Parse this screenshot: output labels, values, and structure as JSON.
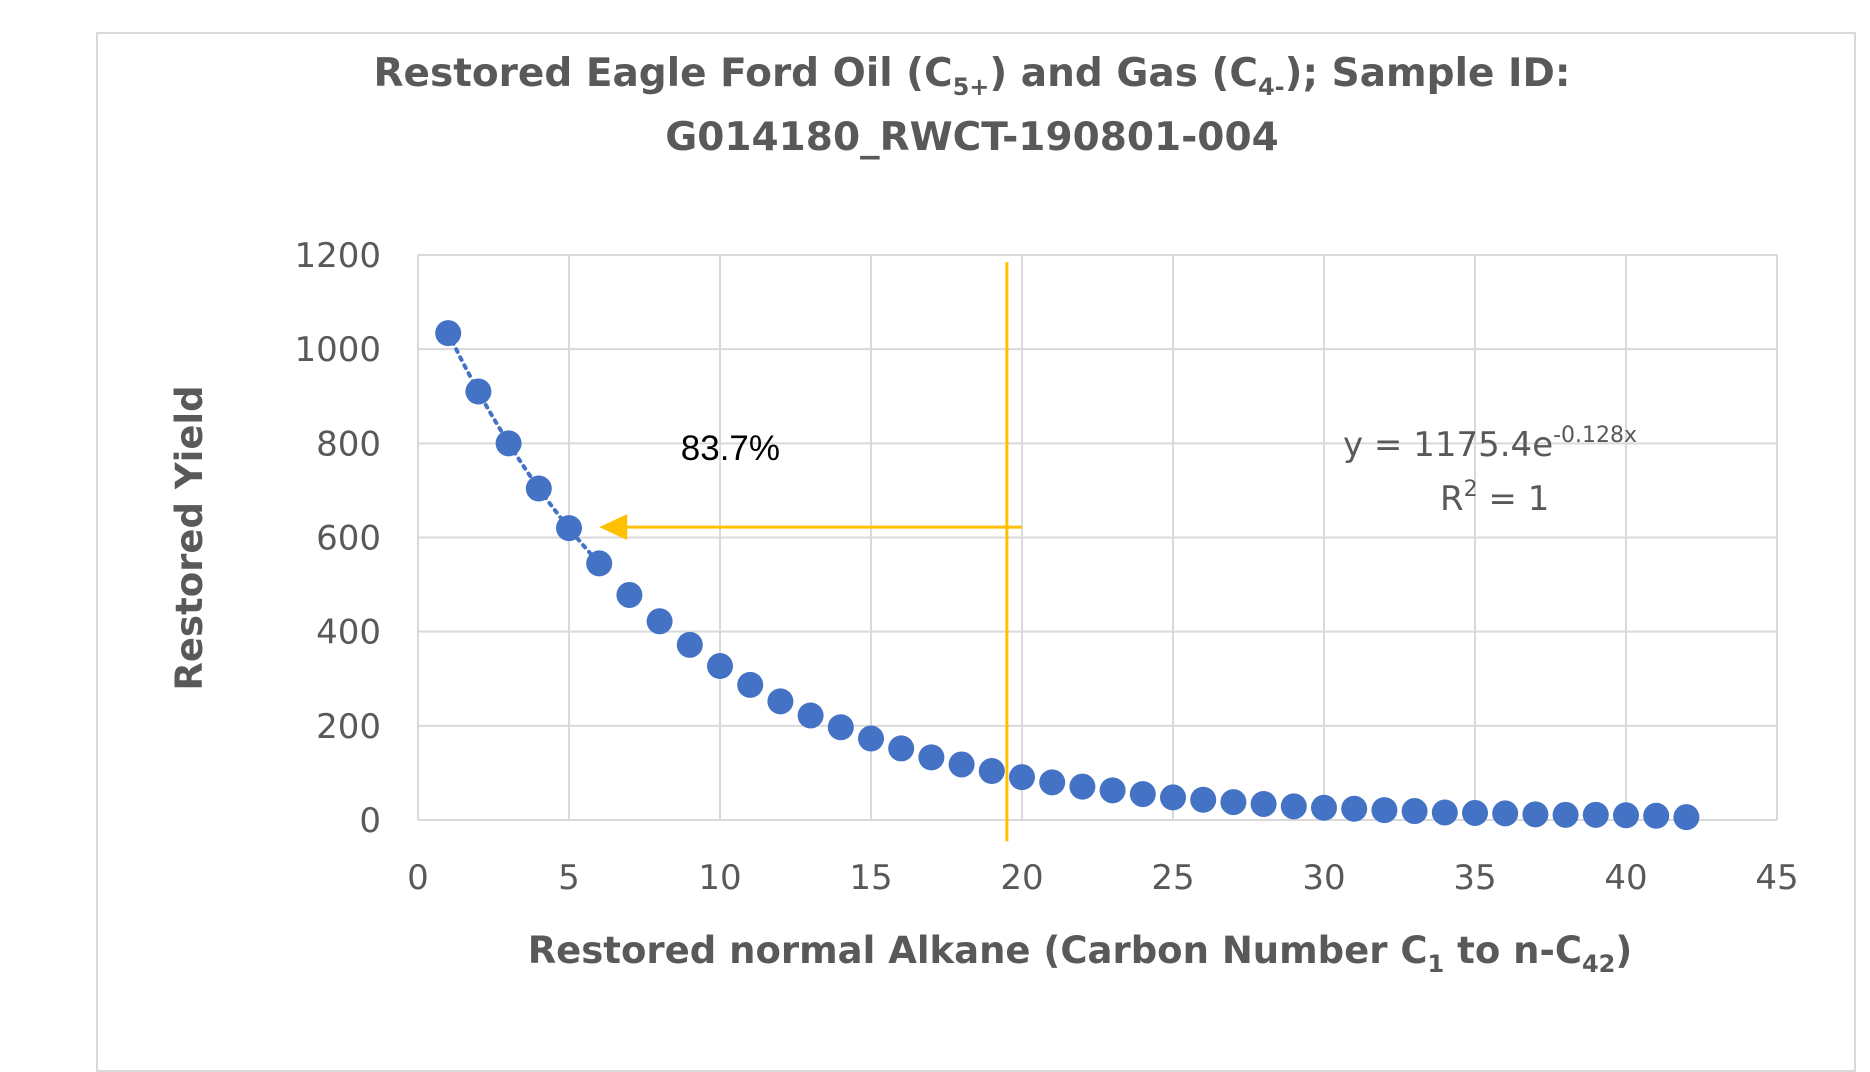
{
  "chart_data": {
    "type": "scatter",
    "title": {
      "line1": {
        "part1": "Restored Eagle Ford Oil (C",
        "sub1": "5+",
        "part2": ") and Gas (C",
        "sub2": "4-",
        "part3": "); Sample ID:"
      },
      "line2": "G014180_RWCT-190801-004"
    },
    "xlabel": {
      "part1": "Restored normal Alkane (Carbon Number C",
      "sub1": "1",
      "part2": " to n-C",
      "sub2": "42",
      "part3": ")"
    },
    "ylabel": "Restored Yield",
    "xlim": [
      0,
      45
    ],
    "ylim": [
      0,
      1200
    ],
    "x_ticks": [
      "0",
      "5",
      "10",
      "15",
      "20",
      "25",
      "30",
      "35",
      "40",
      "45"
    ],
    "y_ticks": [
      "0",
      "200",
      "400",
      "600",
      "800",
      "1000",
      "1200"
    ],
    "grid": true,
    "series": [
      {
        "color": "#4472c4",
        "x": [
          1,
          2,
          3,
          4,
          5,
          6,
          7,
          8,
          9,
          10,
          11,
          12,
          13,
          14,
          15,
          16,
          17,
          18,
          19,
          20,
          21,
          22,
          23,
          24,
          25,
          26,
          27,
          28,
          29,
          30,
          31,
          32,
          33,
          34,
          35,
          36,
          37,
          38,
          39,
          40,
          41,
          42
        ],
        "y": [
          1034,
          910,
          800,
          704,
          620,
          545,
          478,
          422,
          372,
          327,
          287,
          252,
          222,
          197,
          173,
          152,
          133,
          118,
          104,
          91,
          80,
          71,
          63,
          55,
          48,
          43,
          38,
          34,
          29,
          26,
          24,
          21,
          19,
          16,
          15,
          14,
          12,
          11,
          11,
          10,
          9,
          6
        ]
      }
    ],
    "trendline": {
      "type": "exponential",
      "a": 1175.4,
      "b": -0.128,
      "color": "#4472c4",
      "style": "dotted",
      "x_range": [
        1,
        6
      ]
    },
    "trendline_label": {
      "line1_main": "y = 1175.4e",
      "line1_sup": "-0.128x",
      "line2_main": "R",
      "line2_sup": "2",
      "line2_rest": " = 1"
    },
    "annotations": {
      "vline_x": 19.5,
      "vline_y_range": [
        -45,
        1185
      ],
      "arrow_from": [
        20,
        622
      ],
      "arrow_to": [
        6,
        622
      ],
      "arrow_color": "#ffc000",
      "percent_label": "83.7%",
      "percent_label_at": [
        12,
        790
      ]
    }
  }
}
